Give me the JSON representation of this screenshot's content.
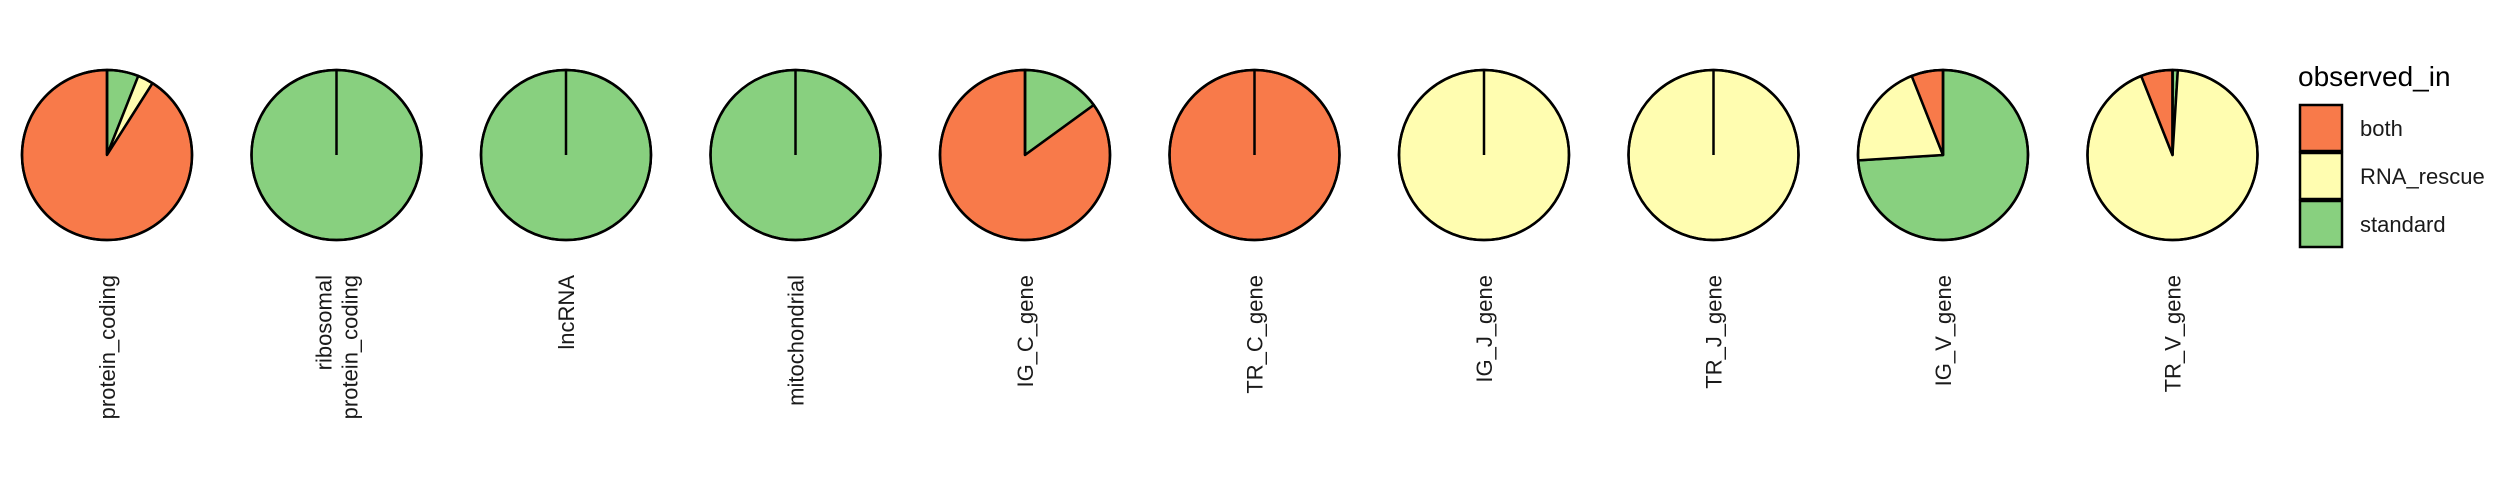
{
  "chart_data": {
    "type": "pie",
    "legend": {
      "title": "observed_in",
      "position": "right",
      "entries": [
        {
          "name": "both",
          "color": "#F87A4A"
        },
        {
          "name": "RNA_rescue",
          "color": "#FFFDB0"
        },
        {
          "name": "standard",
          "color": "#88D07F"
        }
      ]
    },
    "series_order": [
      "standard",
      "RNA_rescue",
      "both"
    ],
    "categories": [
      {
        "label": [
          "protein_coding"
        ],
        "values": {
          "standard": 0.06,
          "RNA_rescue": 0.03,
          "both": 0.91
        }
      },
      {
        "label": [
          "ribosomal",
          "protein_coding"
        ],
        "values": {
          "standard": 1.0,
          "RNA_rescue": 0.0,
          "both": 0.0
        }
      },
      {
        "label": [
          "lncRNA"
        ],
        "values": {
          "standard": 1.0,
          "RNA_rescue": 0.0,
          "both": 0.0
        }
      },
      {
        "label": [
          "mitochondrial"
        ],
        "values": {
          "standard": 1.0,
          "RNA_rescue": 0.0,
          "both": 0.0
        }
      },
      {
        "label": [
          "IG_C_gene"
        ],
        "values": {
          "standard": 0.15,
          "RNA_rescue": 0.0,
          "both": 0.85
        }
      },
      {
        "label": [
          "TR_C_gene"
        ],
        "values": {
          "standard": 0.0,
          "RNA_rescue": 0.0,
          "both": 1.0
        }
      },
      {
        "label": [
          "IG_J_gene"
        ],
        "values": {
          "standard": 0.0,
          "RNA_rescue": 1.0,
          "both": 0.0
        }
      },
      {
        "label": [
          "TR_J_gene"
        ],
        "values": {
          "standard": 0.0,
          "RNA_rescue": 1.0,
          "both": 0.0
        }
      },
      {
        "label": [
          "IG_V_gene"
        ],
        "values": {
          "standard": 0.74,
          "RNA_rescue": 0.2,
          "both": 0.06
        }
      },
      {
        "label": [
          "TR_V_gene"
        ],
        "values": {
          "standard": 0.01,
          "RNA_rescue": 0.93,
          "both": 0.06
        }
      }
    ]
  }
}
